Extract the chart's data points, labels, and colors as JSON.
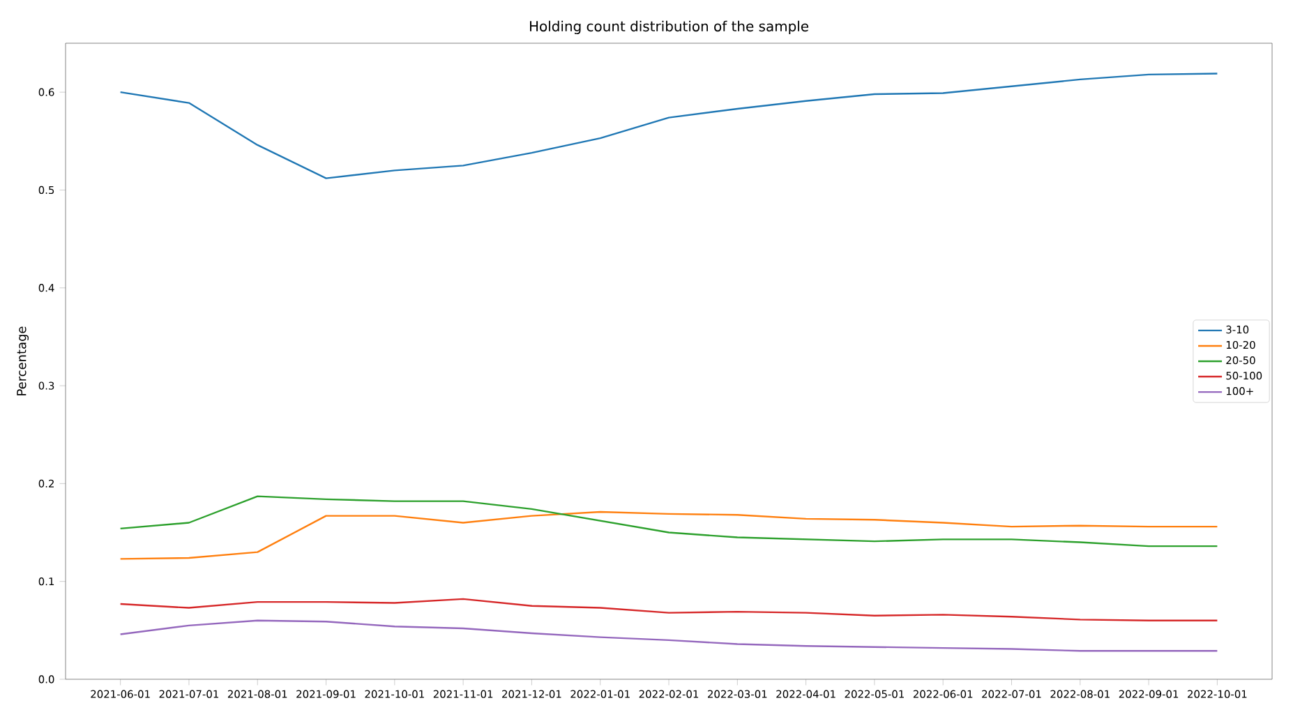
{
  "chart_data": {
    "type": "line",
    "title": "Holding count distribution of the sample",
    "ylabel": "Percentage",
    "categories": [
      "2021-06-01",
      "2021-07-01",
      "2021-08-01",
      "2021-09-01",
      "2021-10-01",
      "2021-11-01",
      "2021-12-01",
      "2022-01-01",
      "2022-02-01",
      "2022-03-01",
      "2022-04-01",
      "2022-05-01",
      "2022-06-01",
      "2022-07-01",
      "2022-08-01",
      "2022-09-01",
      "2022-10-01"
    ],
    "ylim": [
      0,
      0.65
    ],
    "yticks": [
      {
        "value": 0,
        "label": "0.0"
      },
      0.1,
      0.2,
      0.3,
      0.4,
      0.5,
      0.6
    ],
    "legend": "right",
    "series": [
      {
        "name": "3-10",
        "color": "#1f77b4",
        "values": [
          0.6,
          0.589,
          0.546,
          0.512,
          0.52,
          0.525,
          0.538,
          0.553,
          0.574,
          0.583,
          0.591,
          0.598,
          0.599,
          0.606,
          0.613,
          0.618,
          0.619
        ]
      },
      {
        "name": "10-20",
        "color": "#ff7f0e",
        "values": [
          0.123,
          0.124,
          0.13,
          0.167,
          0.167,
          0.16,
          0.167,
          0.171,
          0.169,
          0.168,
          0.164,
          0.163,
          0.16,
          0.156,
          0.157,
          0.156,
          0.156
        ]
      },
      {
        "name": "20-50",
        "color": "#2ca02c",
        "values": [
          0.154,
          0.16,
          0.187,
          0.184,
          0.182,
          0.182,
          0.174,
          0.162,
          0.15,
          0.145,
          0.143,
          0.141,
          0.143,
          0.143,
          0.14,
          0.136,
          0.136
        ]
      },
      {
        "name": "50-100",
        "color": "#d62728",
        "values": [
          0.077,
          0.073,
          0.079,
          0.079,
          0.078,
          0.082,
          0.075,
          0.073,
          0.068,
          0.069,
          0.068,
          0.065,
          0.066,
          0.064,
          0.061,
          0.06,
          0.06
        ]
      },
      {
        "name": "100+",
        "color": "#9467bd",
        "values": [
          0.046,
          0.055,
          0.06,
          0.059,
          0.054,
          0.052,
          0.047,
          0.043,
          0.04,
          0.036,
          0.034,
          0.033,
          0.032,
          0.031,
          0.029,
          0.029,
          0.029
        ]
      }
    ]
  }
}
